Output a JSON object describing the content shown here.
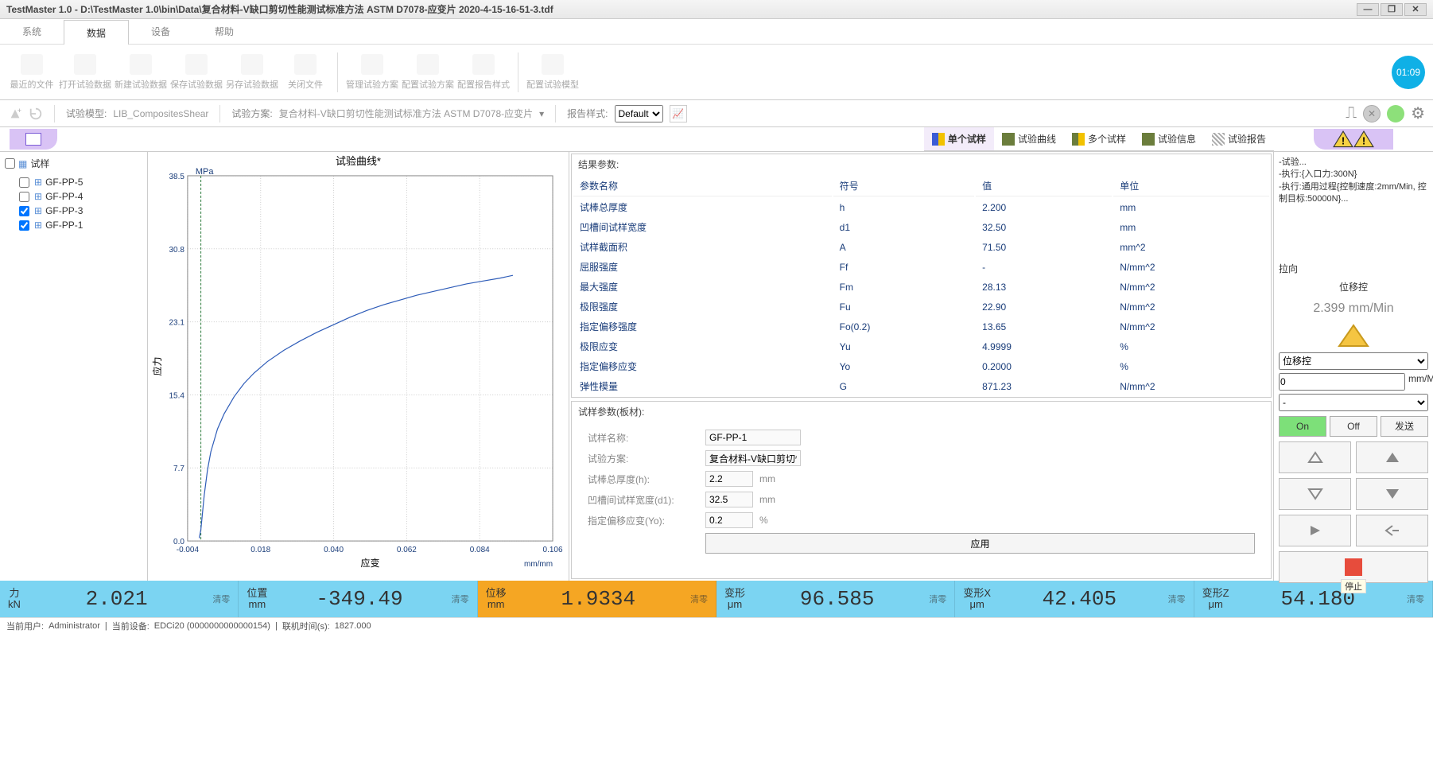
{
  "window": {
    "title": "TestMaster 1.0 - D:\\TestMaster 1.0\\bin\\Data\\复合材料-V缺口剪切性能测试标准方法 ASTM D7078-应变片 2020-4-15-16-51-3.tdf"
  },
  "menus": {
    "system": "系统",
    "data": "数据",
    "device": "设备",
    "help": "帮助"
  },
  "ribbon": {
    "recent": "最近的文件",
    "open": "打开试验数据",
    "new": "新建试验数据",
    "save": "保存试验数据",
    "saveas": "另存试验数据",
    "close": "关闭文件",
    "manage": "管理试验方案",
    "config_plan": "配置试验方案",
    "config_report": "配置报告样式",
    "config_model": "配置试验模型",
    "clock": "01:09"
  },
  "subbar": {
    "model_lbl": "试验模型:",
    "model_val": "LIB_CompositesShear",
    "plan_lbl": "试验方案:",
    "plan_val": "复合材料-V缺口剪切性能测试标准方法 ASTM D7078-应变片",
    "report_lbl": "报告样式:",
    "report_val": "Default"
  },
  "tabs": {
    "single": "单个试样",
    "curves": "试验曲线",
    "multi": "多个试样",
    "info": "试验信息",
    "report": "试验报告"
  },
  "tree": {
    "title": "试样",
    "items": [
      {
        "name": "GF-PP-5",
        "checked": false
      },
      {
        "name": "GF-PP-4",
        "checked": false
      },
      {
        "name": "GF-PP-3",
        "checked": true
      },
      {
        "name": "GF-PP-1",
        "checked": true
      }
    ]
  },
  "chart": {
    "title": "试验曲线*",
    "y_label": "应力",
    "y_unit": "MPa",
    "x_label": "应变",
    "x_unit": "mm/mm",
    "y_ticks": [
      0.0,
      7.7,
      15.4,
      23.1,
      30.8,
      38.5
    ],
    "x_ticks": [
      -0.004,
      0.018,
      0.04,
      0.062,
      0.084,
      0.106
    ],
    "curve_color": "#2e5cb8",
    "vline_x": 0.0,
    "points": [
      [
        -0.0005,
        0.3
      ],
      [
        0.0,
        1.2
      ],
      [
        0.0005,
        3.0
      ],
      [
        0.001,
        4.8
      ],
      [
        0.002,
        7.5
      ],
      [
        0.003,
        9.4
      ],
      [
        0.005,
        11.8
      ],
      [
        0.007,
        13.4
      ],
      [
        0.01,
        15.2
      ],
      [
        0.013,
        16.6
      ],
      [
        0.016,
        17.7
      ],
      [
        0.02,
        18.9
      ],
      [
        0.025,
        20.1
      ],
      [
        0.03,
        21.1
      ],
      [
        0.035,
        22.0
      ],
      [
        0.04,
        22.8
      ],
      [
        0.045,
        23.6
      ],
      [
        0.05,
        24.3
      ],
      [
        0.055,
        24.9
      ],
      [
        0.06,
        25.4
      ],
      [
        0.065,
        25.9
      ],
      [
        0.07,
        26.3
      ],
      [
        0.075,
        26.7
      ],
      [
        0.08,
        27.1
      ],
      [
        0.085,
        27.4
      ],
      [
        0.09,
        27.7
      ],
      [
        0.094,
        28.0
      ]
    ]
  },
  "results": {
    "title": "结果参数:",
    "headers": {
      "name": "参数名称",
      "sym": "符号",
      "val": "值",
      "unit": "单位"
    },
    "rows": [
      {
        "name": "试棒总厚度",
        "sym": "h",
        "val": "2.200",
        "unit": "mm"
      },
      {
        "name": "凹槽间试样宽度",
        "sym": "d1",
        "val": "32.50",
        "unit": "mm"
      },
      {
        "name": "试样截面积",
        "sym": "A",
        "val": "71.50",
        "unit": "mm^2"
      },
      {
        "name": "屈服强度",
        "sym": "Ff",
        "val": "-",
        "unit": "N/mm^2"
      },
      {
        "name": "最大强度",
        "sym": "Fm",
        "val": "28.13",
        "unit": "N/mm^2"
      },
      {
        "name": "极限强度",
        "sym": "Fu",
        "val": "22.90",
        "unit": "N/mm^2"
      },
      {
        "name": "指定偏移强度",
        "sym": "Fo(0.2)",
        "val": "13.65",
        "unit": "N/mm^2"
      },
      {
        "name": "极限应变",
        "sym": "Yu",
        "val": "4.9999",
        "unit": "%"
      },
      {
        "name": "指定偏移应变",
        "sym": "Yo",
        "val": "0.2000",
        "unit": "%"
      },
      {
        "name": "弹性模量",
        "sym": "G",
        "val": "871.23",
        "unit": "N/mm^2"
      }
    ]
  },
  "sample": {
    "title": "试样参数(板材):",
    "name_lbl": "试样名称:",
    "name": "GF-PP-1",
    "plan_lbl": "试验方案:",
    "plan": "复合材料-V缺口剪切性能测",
    "h_lbl": "试棒总厚度(h):",
    "h": "2.2",
    "h_unit": "mm",
    "d1_lbl": "凹槽间试样宽度(d1):",
    "d1": "32.5",
    "d1_unit": "mm",
    "yo_lbl": "指定偏移应变(Yo):",
    "yo": "0.2",
    "yo_unit": "%",
    "apply": "应用"
  },
  "side": {
    "log1": "-试验...",
    "log2": "-执行:{入口力:300N}",
    "log3": "-执行:通用过程{控制速度:2mm/Min, 控制目标:50000N}...",
    "direction_lbl": "拉向",
    "mode_lbl": "位移控",
    "speed": "2.399 mm/Min",
    "select_mode": "位移控",
    "value": "0",
    "value_unit": "mm/M",
    "dash": "-",
    "on": "On",
    "off": "Off",
    "send": "发送",
    "stop_tip": "停止"
  },
  "readouts": [
    {
      "label": "力",
      "unit": "kN",
      "val": "2.021",
      "reset": "清零",
      "style": "blue"
    },
    {
      "label": "位置",
      "unit": "mm",
      "val": "-349.49",
      "reset": "清零",
      "style": "blue"
    },
    {
      "label": "位移",
      "unit": "mm",
      "val": "1.9334",
      "reset": "清零",
      "style": "orange"
    },
    {
      "label": "变形",
      "unit": "μm",
      "val": "96.585",
      "reset": "清零",
      "style": "blue"
    },
    {
      "label": "变形X",
      "unit": "μm",
      "val": "42.405",
      "reset": "清零",
      "style": "blue"
    },
    {
      "label": "变形Z",
      "unit": "μm",
      "val": "54.180",
      "reset": "清零",
      "style": "blue"
    }
  ],
  "status": {
    "user_lbl": "当前用户:",
    "user": "Administrator",
    "dev_lbl": "当前设备:",
    "dev": "EDCi20 (0000000000000154)",
    "conn_lbl": "联机时间(s):",
    "conn": "1827.000"
  }
}
